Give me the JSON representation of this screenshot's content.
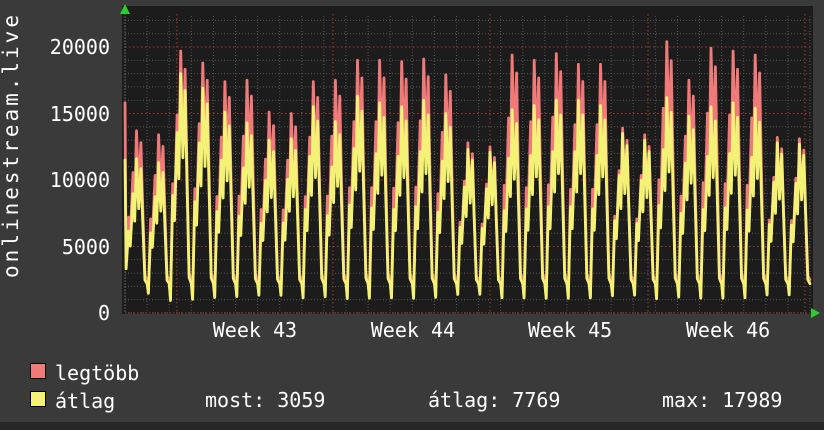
{
  "watermark": "onlinestream.live",
  "legend": {
    "items": [
      {
        "label": "legtöbb",
        "color": "#f07a7a"
      },
      {
        "label": "átlag",
        "color": "#f3f277"
      }
    ]
  },
  "stats": {
    "most": "most: 3059",
    "atlag": "átlag: 7769",
    "max": "max: 17989"
  },
  "chart_data": {
    "type": "line",
    "title": "",
    "vertical_label": "onlinestream.live",
    "xlabel": "",
    "ylabel": "",
    "y_ticks": [
      0,
      5000,
      10000,
      15000,
      20000
    ],
    "y_minor_step": 1000,
    "ylim": [
      0,
      22300
    ],
    "x_tick_labels": [
      "Week 43",
      "Week 44",
      "Week 45",
      "Week 46"
    ],
    "x_tick_centers_day": [
      5.88,
      13.03,
      20.14,
      27.29
    ],
    "week_boundary_days": [
      2.35,
      9.41,
      16.52,
      23.67,
      30.77
    ],
    "days_visible": 31,
    "grid": {
      "minor_color": "#565656",
      "major_color": "#a53c3c",
      "on": true
    },
    "axis_arrow_color": "#2fcc2f",
    "legend_position": "bottom-left",
    "series": [
      {
        "name": "legtöbb",
        "color": "#f07a7a",
        "base": 2500,
        "edge_start": 15800,
        "day_peaks": [
          13700,
          13400,
          19700,
          18800,
          17400,
          17500,
          15100,
          15000,
          17400,
          17500,
          19000,
          19000,
          18900,
          19100,
          17900,
          12800,
          12500,
          19400,
          19000,
          19500,
          18700,
          18700,
          13900,
          13400,
          20400,
          17500,
          19900,
          19700,
          19400,
          13200,
          13100
        ]
      },
      {
        "name": "átlag",
        "color": "#f3f277",
        "base": 2200,
        "edge_start": 11500,
        "day_peaks": [
          11600,
          11300,
          17989,
          16900,
          15100,
          14300,
          13000,
          13100,
          15500,
          14400,
          16300,
          15800,
          15500,
          16000,
          15000,
          12300,
          12100,
          15300,
          15600,
          16000,
          16000,
          15600,
          13500,
          13000,
          16200,
          14800,
          15500,
          15800,
          15400,
          12800,
          12700
        ]
      }
    ],
    "day_shape": [
      [
        0,
        0
      ],
      [
        0.06,
        -0.08
      ],
      [
        0.16,
        0.42
      ],
      [
        0.24,
        0.3
      ],
      [
        0.36,
        0.72
      ],
      [
        0.44,
        0.5
      ],
      [
        0.52,
        1.0
      ],
      [
        0.62,
        0.6
      ],
      [
        0.72,
        0.92
      ],
      [
        0.8,
        0.5
      ],
      [
        0.9,
        0.03
      ],
      [
        1,
        0
      ]
    ],
    "summary_values": {
      "most": 3059,
      "atlag": 7769,
      "max": 17989
    }
  }
}
